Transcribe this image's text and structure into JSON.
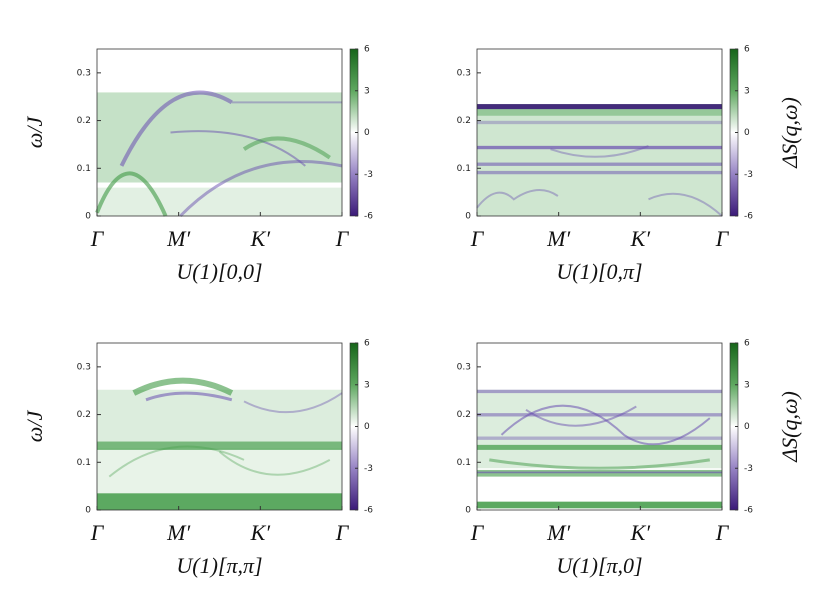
{
  "chart_data": [
    {
      "type": "heatmap",
      "xlabel": "U(1)[0,0]",
      "ylabel": "ω/J",
      "categories": [
        "Γ",
        "M′",
        "K′",
        "Γ"
      ],
      "ylim": [
        0,
        0.35
      ],
      "yticks": [
        0,
        0.1,
        0.2,
        0.3
      ],
      "colorbar": {
        "lim": [
          -6,
          6
        ],
        "ticks": [
          6,
          3,
          0,
          -3,
          -6
        ]
      }
    },
    {
      "type": "heatmap",
      "xlabel": "U(1)[0,π]",
      "categories": [
        "Γ",
        "M′",
        "K′",
        "Γ"
      ],
      "ylim": [
        0,
        0.35
      ],
      "yticks": [
        0,
        0.1,
        0.2,
        0.3
      ],
      "colorbar": {
        "lim": [
          -6,
          6
        ],
        "ticks": [
          6,
          3,
          0,
          -3,
          -6
        ],
        "label": "ΔS(q,ω)"
      }
    },
    {
      "type": "heatmap",
      "xlabel": "U(1)[π,π]",
      "ylabel": "ω/J",
      "categories": [
        "Γ",
        "M′",
        "K′",
        "Γ"
      ],
      "ylim": [
        0,
        0.35
      ],
      "yticks": [
        0,
        0.1,
        0.2,
        0.3
      ],
      "colorbar": {
        "lim": [
          -6,
          6
        ],
        "ticks": [
          6,
          3,
          0,
          -3,
          -6
        ]
      }
    },
    {
      "type": "heatmap",
      "xlabel": "U(1)[π,0]",
      "categories": [
        "Γ",
        "M′",
        "K′",
        "Γ"
      ],
      "ylim": [
        0,
        0.35
      ],
      "yticks": [
        0,
        0.1,
        0.2,
        0.3
      ],
      "colorbar": {
        "lim": [
          -6,
          6
        ],
        "ticks": [
          6,
          3,
          0,
          -3,
          -6
        ],
        "label": "ΔS(q,ω)"
      }
    }
  ]
}
